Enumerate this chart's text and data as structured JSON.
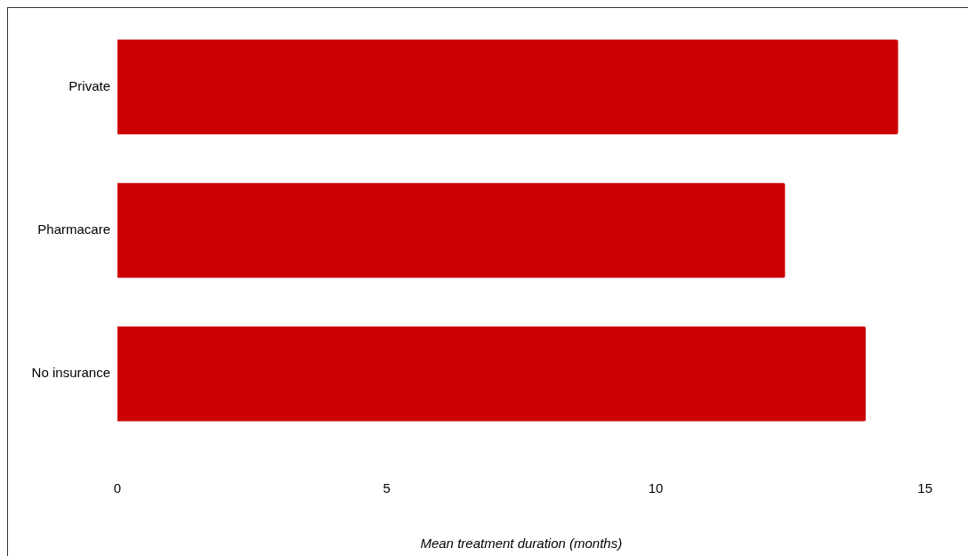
{
  "chart_data": {
    "type": "bar",
    "orientation": "horizontal",
    "xlabel": "Mean treatment duration (months)",
    "categories": [
      "Private",
      "Pharmacare",
      "No insurance"
    ],
    "values": [
      14.5,
      12.4,
      13.9
    ],
    "color": "#cc0000",
    "xlim": [
      0,
      15
    ],
    "xticks": [
      0,
      5,
      10,
      15
    ]
  }
}
